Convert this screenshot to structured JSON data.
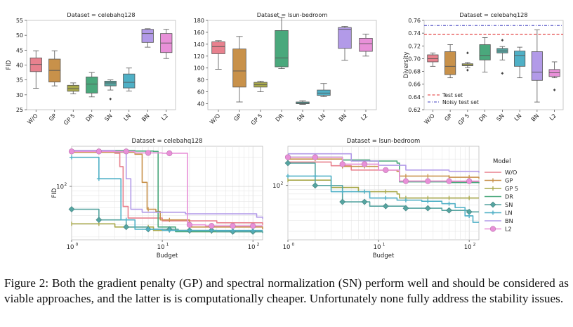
{
  "caption": "Figure 2: Both the gradient penalty (GP) and spectral normalization (SN) perform well and should be considered as viable approaches, and the latter is is computationally cheaper. Unfortunately none fully address the stability issues.",
  "colors": {
    "W/O": "#e8818e",
    "GP": "#c8914a",
    "GP 5": "#a8a84a",
    "DR": "#4aa87c",
    "SN": "#55a4a0",
    "LN": "#4fb0c6",
    "BN": "#b29ae8",
    "L2": "#e890d8"
  },
  "chart_data": [
    {
      "type": "box",
      "title": "Dataset = celebahq128",
      "ylabel": "FID",
      "categories": [
        "W/O",
        "GP",
        "GP 5",
        "DR",
        "SN",
        "LN",
        "BN",
        "L2"
      ],
      "ylim": [
        25,
        55
      ],
      "yticks": [
        25,
        30,
        35,
        40,
        45,
        50,
        55
      ],
      "boxes": [
        {
          "min": 32.2,
          "q1": 37.8,
          "median": 40.2,
          "q3": 42.4,
          "max": 44.8,
          "outliers": []
        },
        {
          "min": 33.0,
          "q1": 34.3,
          "median": 38.2,
          "q3": 42.0,
          "max": 44.8,
          "outliers": []
        },
        {
          "min": 30.3,
          "q1": 31.2,
          "median": 32.1,
          "q3": 33.2,
          "max": 34.0,
          "outliers": []
        },
        {
          "min": 29.3,
          "q1": 30.6,
          "median": 33.6,
          "q3": 36.0,
          "max": 37.5,
          "outliers": []
        },
        {
          "min": 31.6,
          "q1": 33.0,
          "median": 34.0,
          "q3": 34.6,
          "max": 35.0,
          "outliers": [
            28.6
          ]
        },
        {
          "min": 31.3,
          "q1": 32.3,
          "median": 34.2,
          "q3": 37.0,
          "max": 39.0,
          "outliers": []
        },
        {
          "min": 46.0,
          "q1": 47.6,
          "median": 50.6,
          "q3": 52.0,
          "max": 52.2,
          "outliers": []
        },
        {
          "min": 42.2,
          "q1": 44.2,
          "median": 47.4,
          "q3": 50.6,
          "max": 52.0,
          "outliers": []
        }
      ]
    },
    {
      "type": "box",
      "title": "Dataset = lsun-bedroom",
      "ylabel": "",
      "categories": [
        "W/O",
        "GP",
        "GP 5",
        "DR",
        "SN",
        "LN",
        "BN",
        "L2"
      ],
      "ylim": [
        30,
        180
      ],
      "yticks": [
        40,
        60,
        80,
        100,
        120,
        140,
        160,
        180
      ],
      "boxes": [
        {
          "min": 98,
          "q1": 124,
          "median": 136,
          "q3": 144,
          "max": 146,
          "outliers": []
        },
        {
          "min": 43,
          "q1": 68,
          "median": 95,
          "q3": 132,
          "max": 153,
          "outliers": []
        },
        {
          "min": 60,
          "q1": 68,
          "median": 72,
          "q3": 76,
          "max": 78,
          "outliers": []
        },
        {
          "min": 99,
          "q1": 102,
          "median": 117,
          "q3": 163,
          "max": 185,
          "outliers": []
        },
        {
          "min": 39,
          "q1": 40,
          "median": 41,
          "q3": 43,
          "max": 45,
          "outliers": []
        },
        {
          "min": 52,
          "q1": 54,
          "median": 58,
          "q3": 63,
          "max": 74,
          "outliers": []
        },
        {
          "min": 113,
          "q1": 133,
          "median": 165,
          "q3": 168,
          "max": 170,
          "outliers": []
        },
        {
          "min": 120,
          "q1": 128,
          "median": 141,
          "q3": 150,
          "max": 157,
          "outliers": []
        }
      ]
    },
    {
      "type": "box",
      "title": "Dataset = celebahq128",
      "ylabel": "Diversity",
      "categories": [
        "W/O",
        "GP",
        "GP 5",
        "DR",
        "SN",
        "LN",
        "BN",
        "L2"
      ],
      "ylim": [
        0.62,
        0.76
      ],
      "yticks": [
        "0.62",
        "0.64",
        "0.66",
        "0.68",
        "0.70",
        "0.72",
        "0.74",
        "0.76"
      ],
      "boxes": [
        {
          "min": 0.688,
          "q1": 0.695,
          "median": 0.7,
          "q3": 0.706,
          "max": 0.709,
          "outliers": []
        },
        {
          "min": 0.67,
          "q1": 0.675,
          "median": 0.688,
          "q3": 0.711,
          "max": 0.722,
          "outliers": []
        },
        {
          "min": 0.686,
          "q1": 0.689,
          "median": 0.69,
          "q3": 0.692,
          "max": 0.694,
          "outliers": [
            0.682,
            0.709
          ]
        },
        {
          "min": 0.679,
          "q1": 0.698,
          "median": 0.705,
          "q3": 0.722,
          "max": 0.733,
          "outliers": []
        },
        {
          "min": 0.698,
          "q1": 0.709,
          "median": 0.712,
          "q3": 0.716,
          "max": 0.719,
          "outliers": [
            0.677,
            0.729
          ]
        },
        {
          "min": 0.67,
          "q1": 0.688,
          "median": 0.705,
          "q3": 0.712,
          "max": 0.718,
          "outliers": []
        },
        {
          "min": 0.632,
          "q1": 0.666,
          "median": 0.679,
          "q3": 0.711,
          "max": 0.745,
          "outliers": []
        },
        {
          "min": 0.67,
          "q1": 0.672,
          "median": 0.678,
          "q3": 0.683,
          "max": 0.695,
          "outliers": [
            0.651
          ]
        }
      ],
      "reference_lines": [
        {
          "name": "Test set",
          "value": 0.738,
          "style": "dashed",
          "color": "#e03030"
        },
        {
          "name": "Noisy test set",
          "value": 0.752,
          "style": "dashdot",
          "color": "#4040c0"
        }
      ],
      "legend_position": "lower-left"
    },
    {
      "type": "line",
      "title": "Dataset = celebahq128",
      "xlabel": "Budget",
      "ylabel": "FID",
      "xscale": "log",
      "yscale": "log",
      "xlim": [
        1,
        128
      ],
      "ylim": [
        28,
        260
      ],
      "xticks": [
        {
          "value": 1,
          "label": "10",
          "exp": "0"
        },
        {
          "value": 10,
          "label": "10",
          "exp": "1"
        },
        {
          "value": 100,
          "label": "10",
          "exp": "2"
        }
      ],
      "yticks": [
        {
          "value": 100,
          "label": "10",
          "exp": "2"
        }
      ],
      "series": [
        {
          "name": "W/O",
          "points": [
            [
              1,
              232
            ],
            [
              3,
              220
            ],
            [
              3.4,
              160
            ],
            [
              3.7,
              62
            ],
            [
              4.2,
              47
            ],
            [
              10,
              44
            ],
            [
              40,
              42
            ],
            [
              128,
              40
            ]
          ]
        },
        {
          "name": "GP",
          "points": [
            [
              1,
              225
            ],
            [
              5,
              215
            ],
            [
              6,
              110
            ],
            [
              6.8,
              58
            ],
            [
              8.5,
              55
            ],
            [
              9.5,
              45
            ],
            [
              20,
              38
            ],
            [
              128,
              36
            ]
          ]
        },
        {
          "name": "GP 5",
          "points": [
            [
              1,
              41
            ],
            [
              3,
              38
            ],
            [
              8,
              35
            ],
            [
              20,
              34
            ],
            [
              128,
              34
            ]
          ]
        },
        {
          "name": "DR",
          "points": [
            [
              1,
              235
            ],
            [
              5,
              232
            ],
            [
              8,
              230
            ],
            [
              9,
              38
            ],
            [
              14,
              34
            ],
            [
              128,
              34
            ]
          ]
        },
        {
          "name": "SN",
          "points": [
            [
              1,
              58
            ],
            [
              2,
              45
            ],
            [
              4,
              38
            ],
            [
              7,
              36
            ],
            [
              15,
              35
            ],
            [
              40,
              34
            ],
            [
              128,
              33
            ]
          ]
        },
        {
          "name": "LN",
          "points": [
            [
              1,
              200
            ],
            [
              2,
              120
            ],
            [
              3.5,
              45
            ],
            [
              5,
              36
            ],
            [
              10,
              35
            ],
            [
              128,
              35
            ]
          ]
        },
        {
          "name": "BN",
          "points": [
            [
              1,
              235
            ],
            [
              3,
              228
            ],
            [
              4,
              120
            ],
            [
              4.5,
              58
            ],
            [
              6,
              54
            ],
            [
              18,
              52
            ],
            [
              60,
              52
            ],
            [
              110,
              48
            ],
            [
              128,
              46
            ]
          ]
        },
        {
          "name": "L2",
          "points": [
            [
              1,
              230
            ],
            [
              5,
              222
            ],
            [
              10,
              220
            ],
            [
              18,
              220
            ],
            [
              19,
              40
            ],
            [
              30,
              39
            ],
            [
              128,
              39
            ]
          ]
        }
      ],
      "legend_title": "Model",
      "legend_position": "right"
    },
    {
      "type": "line",
      "title": "Dataset = lsun-bedroom",
      "xlabel": "Budget",
      "ylabel": "",
      "xscale": "log",
      "yscale": "log",
      "xlim": [
        1,
        128
      ],
      "ylim": [
        24,
        280
      ],
      "xticks": [
        {
          "value": 1,
          "label": "10",
          "exp": "0"
        },
        {
          "value": 10,
          "label": "10",
          "exp": "1"
        },
        {
          "value": 100,
          "label": "10",
          "exp": "2"
        }
      ],
      "yticks": [
        {
          "value": 100,
          "label": "10",
          "exp": "2"
        }
      ],
      "series": [
        {
          "name": "W/O",
          "points": [
            [
              1,
              185
            ],
            [
              3,
              168
            ],
            [
              5,
              150
            ],
            [
              8,
              150
            ],
            [
              16,
              145
            ],
            [
              17,
              112
            ],
            [
              60,
              110
            ],
            [
              128,
              108
            ]
          ]
        },
        {
          "name": "GP",
          "points": [
            [
              1,
              200
            ],
            [
              4,
              165
            ],
            [
              10,
              150
            ],
            [
              16,
              145
            ],
            [
              17,
              128
            ],
            [
              60,
              124
            ],
            [
              128,
              120
            ]
          ]
        },
        {
          "name": "GP 5",
          "points": [
            [
              1,
              115
            ],
            [
              3,
              95
            ],
            [
              6,
              85
            ],
            [
              16,
              80
            ],
            [
              17,
              72
            ],
            [
              128,
              72
            ]
          ]
        },
        {
          "name": "DR",
          "points": [
            [
              1,
              210
            ],
            [
              4,
              195
            ],
            [
              8,
              190
            ],
            [
              16,
              180
            ],
            [
              17,
              110
            ],
            [
              60,
              108
            ],
            [
              128,
              106
            ]
          ]
        },
        {
          "name": "SN",
          "points": [
            [
              1,
              180
            ],
            [
              2,
              100
            ],
            [
              4,
              65
            ],
            [
              8,
              58
            ],
            [
              20,
              55
            ],
            [
              50,
              52
            ],
            [
              80,
              52
            ],
            [
              100,
              50
            ],
            [
              128,
              50
            ]
          ]
        },
        {
          "name": "LN",
          "points": [
            [
              1,
              128
            ],
            [
              3,
              85
            ],
            [
              8,
              72
            ],
            [
              16,
              68
            ],
            [
              30,
              66
            ],
            [
              50,
              62
            ],
            [
              70,
              56
            ],
            [
              90,
              45
            ],
            [
              110,
              38
            ],
            [
              128,
              38
            ]
          ]
        },
        {
          "name": "BN",
          "points": [
            [
              1,
              230
            ],
            [
              5,
              190
            ],
            [
              10,
              170
            ],
            [
              20,
              150
            ],
            [
              60,
              145
            ],
            [
              128,
              140
            ]
          ]
        },
        {
          "name": "L2",
          "points": [
            [
              1,
              210
            ],
            [
              4,
              175
            ],
            [
              10,
              150
            ],
            [
              17,
              112
            ],
            [
              128,
              112
            ]
          ]
        }
      ]
    }
  ]
}
